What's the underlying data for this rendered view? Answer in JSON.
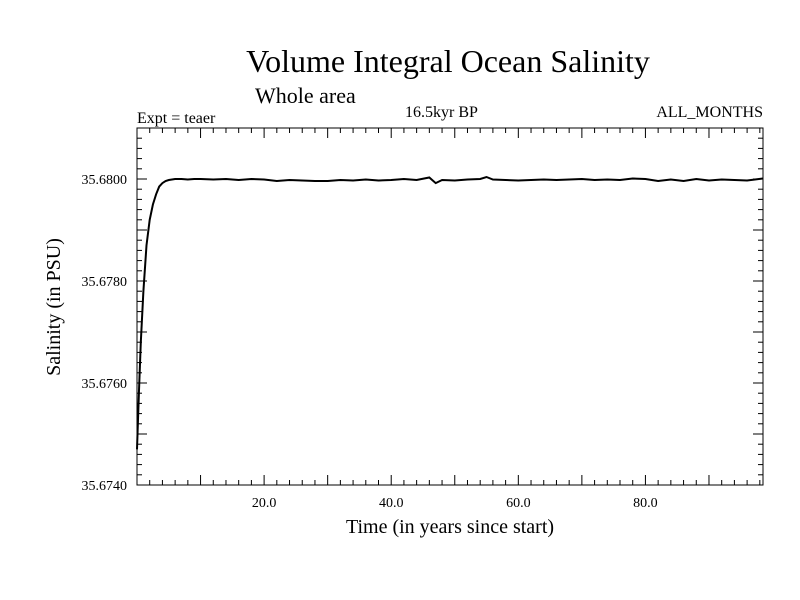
{
  "chart_data": {
    "type": "line",
    "title": "Volume Integral Ocean Salinity",
    "subtitle": "Whole area",
    "experiment_label": "Expt = teaer",
    "period_label": "16.5kyr BP",
    "months_label": "ALL_MONTHS",
    "xlabel": "Time (in years since start)",
    "ylabel": "Salinity (in PSU)",
    "xlim": [
      0,
      98.5
    ],
    "ylim": [
      35.674,
      35.681
    ],
    "x_ticks": [
      {
        "value": 20,
        "label": "20.0"
      },
      {
        "value": 40,
        "label": "40.0"
      },
      {
        "value": 60,
        "label": "60.0"
      },
      {
        "value": 80,
        "label": "80.0"
      }
    ],
    "y_ticks": [
      {
        "value": 35.674,
        "label": "35.6740"
      },
      {
        "value": 35.676,
        "label": "35.6760"
      },
      {
        "value": 35.678,
        "label": "35.6780"
      },
      {
        "value": 35.68,
        "label": "35.6800"
      }
    ],
    "series": [
      {
        "name": "Salinity",
        "x": [
          0,
          0.3,
          0.6,
          1,
          1.5,
          2,
          2.5,
          3,
          3.5,
          4,
          4.5,
          5,
          5.5,
          6,
          7,
          8,
          9,
          10,
          12,
          14,
          16,
          18,
          20,
          22,
          24,
          26,
          28,
          30,
          32,
          34,
          36,
          38,
          40,
          42,
          44,
          46,
          47,
          48,
          50,
          52,
          54,
          55,
          56,
          58,
          60,
          62,
          64,
          66,
          68,
          70,
          72,
          74,
          76,
          78,
          80,
          82,
          84,
          86,
          88,
          90,
          92,
          94,
          96,
          98.5
        ],
        "y": [
          35.6747,
          35.6758,
          35.6768,
          35.6778,
          35.6787,
          35.6792,
          35.6795,
          35.6797,
          35.67985,
          35.67992,
          35.67996,
          35.67998,
          35.67999,
          35.68,
          35.68,
          35.67999,
          35.68,
          35.68,
          35.67999,
          35.68,
          35.67998,
          35.68,
          35.67999,
          35.67996,
          35.67998,
          35.67997,
          35.67996,
          35.67996,
          35.67998,
          35.67997,
          35.67999,
          35.67997,
          35.67998,
          35.68,
          35.67998,
          35.68003,
          35.67992,
          35.67998,
          35.67997,
          35.67999,
          35.68,
          35.68004,
          35.67999,
          35.67998,
          35.67997,
          35.67998,
          35.67999,
          35.67998,
          35.67999,
          35.68,
          35.67998,
          35.67999,
          35.67998,
          35.68001,
          35.68,
          35.67996,
          35.67999,
          35.67996,
          35.68,
          35.67997,
          35.67999,
          35.67998,
          35.67997,
          35.68001
        ]
      }
    ]
  }
}
